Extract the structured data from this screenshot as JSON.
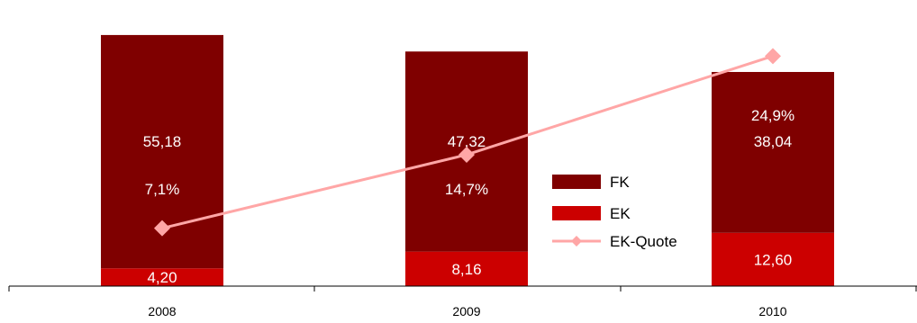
{
  "chart_data": {
    "type": "bar",
    "stacked": true,
    "categories": [
      "2008",
      "2009",
      "2010"
    ],
    "series": [
      {
        "name": "EK",
        "values": [
          4.2,
          8.16,
          12.6
        ],
        "labels": [
          "4,20",
          "8,16",
          "12,60"
        ],
        "color": "#cc0000"
      },
      {
        "name": "FK",
        "values": [
          55.18,
          47.32,
          38.04
        ],
        "labels": [
          "55,18",
          "47,32",
          "38,04"
        ],
        "color": "#7f0000"
      }
    ],
    "line_series": {
      "name": "EK-Quote",
      "values": [
        7.1,
        14.7,
        24.9
      ],
      "labels": [
        "7,1%",
        "14,7%",
        "24,9%"
      ],
      "color": "#ffa6a6"
    },
    "legend": {
      "position": "center-right",
      "order": [
        "FK",
        "EK",
        "EK-Quote"
      ]
    },
    "grid": false
  }
}
